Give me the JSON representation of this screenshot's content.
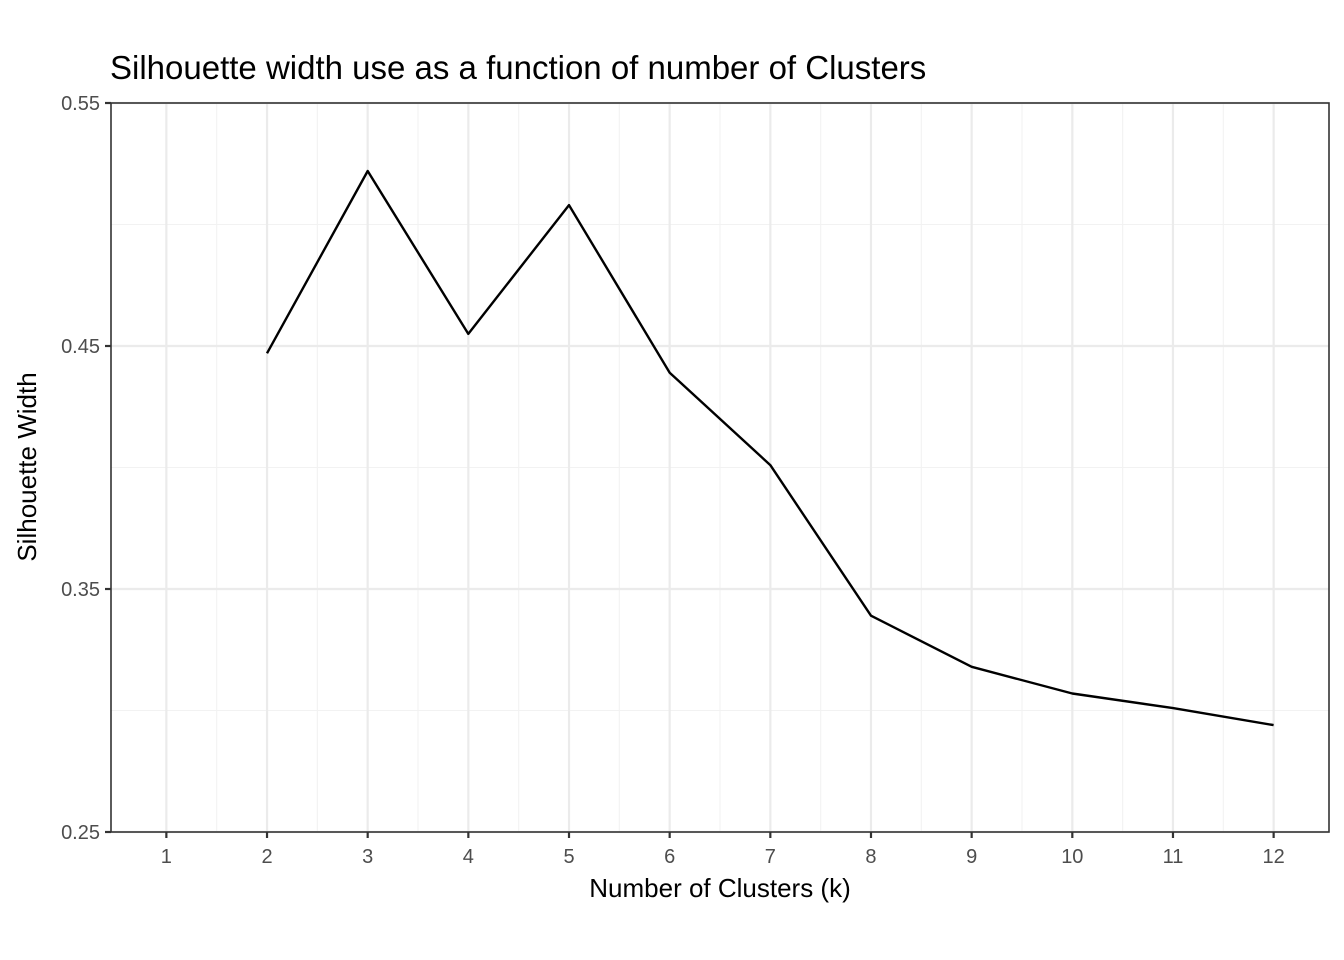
{
  "chart_data": {
    "type": "line",
    "title": "Silhouette width use as a function of number of Clusters",
    "xlabel": "Number of Clusters (k)",
    "ylabel": "Silhouette Width",
    "xlim": [
      0.45,
      12.55
    ],
    "ylim": [
      0.25,
      0.55
    ],
    "x_ticks": [
      1,
      2,
      3,
      4,
      5,
      6,
      7,
      8,
      9,
      10,
      11,
      12
    ],
    "y_ticks": [
      0.25,
      0.35,
      0.45,
      0.55
    ],
    "y_tick_labels": [
      "0.25",
      "0.35",
      "0.45",
      "0.55"
    ],
    "grid": true,
    "legend": "none",
    "series": [
      {
        "color": "#000000",
        "x": [
          2,
          3,
          4,
          5,
          6,
          7,
          8,
          9,
          10,
          11,
          12
        ],
        "y": [
          0.447,
          0.522,
          0.455,
          0.508,
          0.439,
          0.401,
          0.339,
          0.318,
          0.307,
          0.301,
          0.294
        ]
      }
    ]
  }
}
